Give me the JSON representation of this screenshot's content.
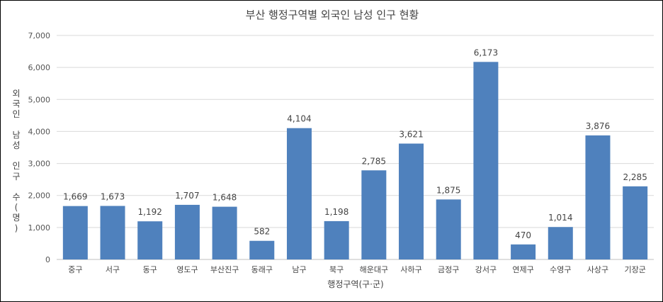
{
  "chart_data": {
    "type": "bar",
    "title": "부산 행정구역별 외국인 남성 인구 현황",
    "xlabel": "행정구역(구·군)",
    "ylabel": "외국인 남성 인구 수(명)",
    "ylim": [
      0,
      7000
    ],
    "yticks": [
      "0",
      "1,000",
      "2,000",
      "3,000",
      "4,000",
      "5,000",
      "6,000",
      "7,000"
    ],
    "grid": true,
    "legend": "none",
    "bar_color": "#4f81bd",
    "categories": [
      "중구",
      "서구",
      "동구",
      "영도구",
      "부산진구",
      "동래구",
      "남구",
      "북구",
      "해운대구",
      "사하구",
      "금정구",
      "강서구",
      "연제구",
      "수영구",
      "사상구",
      "기장군"
    ],
    "values": [
      1669,
      1673,
      1192,
      1707,
      1648,
      582,
      4104,
      1198,
      2785,
      3621,
      1875,
      6173,
      470,
      1014,
      3876,
      2285
    ],
    "value_labels": [
      "1,669",
      "1,673",
      "1,192",
      "1,707",
      "1,648",
      "582",
      "4,104",
      "1,198",
      "2,785",
      "3,621",
      "1,875",
      "6,173",
      "470",
      "1,014",
      "3,876",
      "2,285"
    ]
  }
}
